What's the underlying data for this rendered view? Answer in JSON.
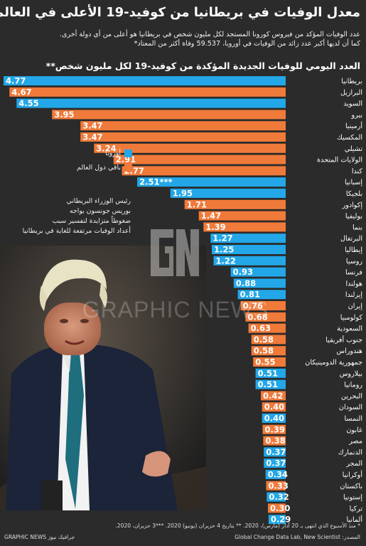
{
  "header": {
    "title": "معدل الوفيات في بريطانيا من كوفيد-19 الأعلى في العالم",
    "subtitle_1": "عدد الوفيات المؤكد من فيروس كورونا المستجد لكل مليون شخص في بريطانيا هو أعلى من أي دولة أخرى.",
    "subtitle_2": "كما أن لديها أكبر عدد زائد من الوفيات في أوروبا، 59.537 وفاة أكثر من المعتاد*",
    "chart_heading": "العدد اليومي للوفيات الجديدة المؤكدة من كوفيد-19 لكل مليون شخص**"
  },
  "legend": {
    "europe": "أوروبا",
    "rest_of_world": "باقي دول العالم"
  },
  "annotation": {
    "line_1": "رئيس الوزراء البريطاني",
    "line_2": "بوريس جونسون يواجه",
    "line_3": "ضغوطاً متزايدة لتفسير سبب",
    "line_4": "أعداد الوفيات مرتفعة للغاية في بريطانيا"
  },
  "watermark": {
    "brand": "GRAPHIC NEWS"
  },
  "footer": {
    "notes": "* منذ الأسبوع الذي انتهى بـ 20 آذار (مارس)، 2020.  ** بتاريخ 4 حزيران (يونيو) 2020.  ***3 حزيران، 2020.",
    "source": "المصدر: Global Change Data Lab, New Scientist",
    "credit": "GRAPHIC NEWS جرافيك نيوز"
  },
  "colors": {
    "background": "#2b2b2b",
    "europe": "#23a7e8",
    "rest_of_world": "#f07a3a",
    "text": "#ffffff"
  },
  "chart_data": {
    "type": "bar",
    "orientation": "horizontal",
    "title": "العدد اليومي للوفيات الجديدة المؤكدة من كوفيد-19 لكل مليون شخص**",
    "series": [
      {
        "name": "أوروبا",
        "color_key": "europe"
      },
      {
        "name": "باقي دول العالم",
        "color_key": "rest_of_world"
      }
    ],
    "xlim": [
      0,
      4.77
    ],
    "bars": [
      {
        "country": "بريطانيا",
        "value": 4.77,
        "value_label": "4.77",
        "group": "europe"
      },
      {
        "country": "البرازيل",
        "value": 4.67,
        "value_label": "4.67",
        "group": "rest_of_world"
      },
      {
        "country": "السويد",
        "value": 4.55,
        "value_label": "4.55",
        "group": "europe"
      },
      {
        "country": "بيرو",
        "value": 3.95,
        "value_label": "3.95",
        "group": "rest_of_world"
      },
      {
        "country": "أرمينيا",
        "value": 3.47,
        "value_label": "3.47",
        "group": "rest_of_world"
      },
      {
        "country": "المكسيك",
        "value": 3.47,
        "value_label": "3.47",
        "group": "rest_of_world"
      },
      {
        "country": "تشيلي",
        "value": 3.24,
        "value_label": "3.24",
        "group": "rest_of_world"
      },
      {
        "country": "الولايات المتحدة",
        "value": 2.91,
        "value_label": "2.91",
        "group": "rest_of_world"
      },
      {
        "country": "كندا",
        "value": 2.77,
        "value_label": "2.77",
        "group": "rest_of_world"
      },
      {
        "country": "إسبانيا",
        "value": 2.51,
        "value_label": "2.51***",
        "group": "europe"
      },
      {
        "country": "بلجيكا",
        "value": 1.95,
        "value_label": "1.95",
        "group": "europe"
      },
      {
        "country": "إكوادور",
        "value": 1.71,
        "value_label": "1.71",
        "group": "rest_of_world"
      },
      {
        "country": "بوليفيا",
        "value": 1.47,
        "value_label": "1.47",
        "group": "rest_of_world"
      },
      {
        "country": "بنما",
        "value": 1.39,
        "value_label": "1.39",
        "group": "rest_of_world"
      },
      {
        "country": "البرتغال",
        "value": 1.27,
        "value_label": "1.27",
        "group": "europe"
      },
      {
        "country": "إيطاليا",
        "value": 1.25,
        "value_label": "1.25",
        "group": "europe"
      },
      {
        "country": "روسيا",
        "value": 1.22,
        "value_label": "1.22",
        "group": "europe"
      },
      {
        "country": "فرنسا",
        "value": 0.93,
        "value_label": "0.93",
        "group": "europe"
      },
      {
        "country": "هولندا",
        "value": 0.88,
        "value_label": "0.88",
        "group": "europe"
      },
      {
        "country": "إيرلندا",
        "value": 0.81,
        "value_label": "0.81",
        "group": "europe"
      },
      {
        "country": "إيران",
        "value": 0.76,
        "value_label": "0.76",
        "group": "rest_of_world"
      },
      {
        "country": "كولومبيا",
        "value": 0.68,
        "value_label": "0.68",
        "group": "rest_of_world"
      },
      {
        "country": "السعودية",
        "value": 0.63,
        "value_label": "0.63",
        "group": "rest_of_world"
      },
      {
        "country": "جنوب أفريقيا",
        "value": 0.58,
        "value_label": "0.58",
        "group": "rest_of_world"
      },
      {
        "country": "هندوراس",
        "value": 0.58,
        "value_label": "0.58",
        "group": "rest_of_world"
      },
      {
        "country": "جمهورية الدومينيكان",
        "value": 0.55,
        "value_label": "0.55",
        "group": "rest_of_world"
      },
      {
        "country": "بيلاروس",
        "value": 0.51,
        "value_label": "0.51",
        "group": "europe"
      },
      {
        "country": "رومانيا",
        "value": 0.51,
        "value_label": "0.51",
        "group": "europe"
      },
      {
        "country": "البحرين",
        "value": 0.42,
        "value_label": "0.42",
        "group": "rest_of_world"
      },
      {
        "country": "السودان",
        "value": 0.4,
        "value_label": "0.40",
        "group": "rest_of_world"
      },
      {
        "country": "النمسا",
        "value": 0.4,
        "value_label": "0.40",
        "group": "europe"
      },
      {
        "country": "غابون",
        "value": 0.39,
        "value_label": "0.39",
        "group": "rest_of_world"
      },
      {
        "country": "مصر",
        "value": 0.38,
        "value_label": "0.38",
        "group": "rest_of_world"
      },
      {
        "country": "الدنمارك",
        "value": 0.37,
        "value_label": "0.37",
        "group": "europe"
      },
      {
        "country": "المجر",
        "value": 0.37,
        "value_label": "0.37",
        "group": "europe"
      },
      {
        "country": "أوكرانيا",
        "value": 0.34,
        "value_label": "0.34",
        "group": "europe"
      },
      {
        "country": "باكستان",
        "value": 0.33,
        "value_label": "0.33",
        "group": "rest_of_world"
      },
      {
        "country": "إستونيا",
        "value": 0.32,
        "value_label": "0.32",
        "group": "europe"
      },
      {
        "country": "تركيا",
        "value": 0.3,
        "value_label": "0.30",
        "group": "rest_of_world"
      },
      {
        "country": "ألمانيا",
        "value": 0.29,
        "value_label": "0.29",
        "group": "europe"
      }
    ]
  }
}
